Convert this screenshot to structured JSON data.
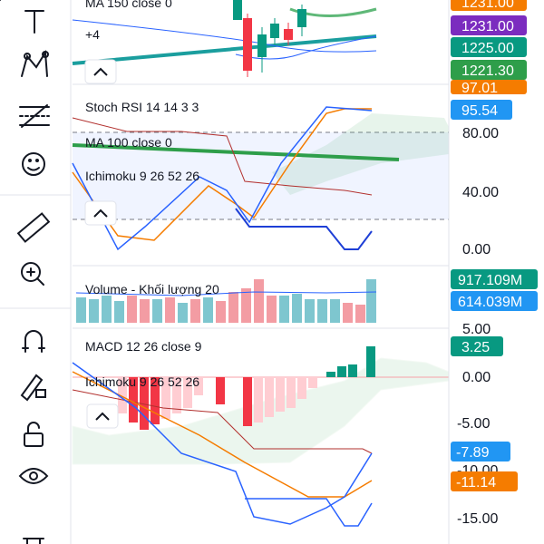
{
  "main_pane": {
    "legend": [
      "MA 150 close 0",
      "+4"
    ],
    "price_labels": [
      "1231.00",
      "1231.00",
      "1225.00",
      "1221.30"
    ]
  },
  "stoch_pane": {
    "legend": [
      "Stoch RSI 14 14 3 3",
      "MA 100 close 0",
      "Ichimoku 9 26 52 26"
    ],
    "price_labels": [
      "97.01",
      "95.54"
    ],
    "axis": [
      "80.00",
      "40.00",
      "0.00"
    ]
  },
  "volume_pane": {
    "legend": "Volume - Khối lượng 20",
    "price_labels": [
      "917.109M",
      "614.039M"
    ]
  },
  "macd_pane": {
    "legend": [
      "MACD 12 26 close 9",
      "Ichimoku 9 26 52 26"
    ],
    "axis": [
      "5.00",
      "0.00",
      "-5.00",
      "-10.00",
      "-15.00"
    ],
    "price_labels": [
      "3.25",
      "-7.89",
      "-11.14"
    ]
  }
}
